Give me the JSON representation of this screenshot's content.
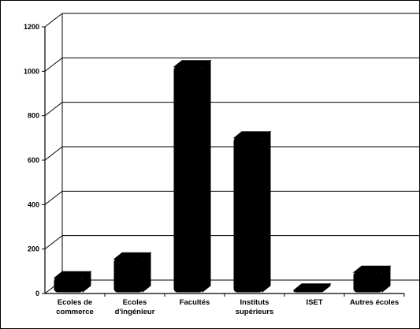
{
  "chart_data": {
    "type": "bar",
    "categories": [
      [
        "Ecoles de",
        "commerce"
      ],
      [
        "Ecoles",
        "d'ingénieur"
      ],
      [
        "Facultés"
      ],
      [
        "Instituts",
        "supérieurs"
      ],
      [
        "ISET"
      ],
      [
        "Autres écoles"
      ]
    ],
    "values": [
      70,
      155,
      1020,
      700,
      15,
      95
    ],
    "yticks": [
      0,
      200,
      400,
      600,
      800,
      1000,
      1200
    ],
    "ylim": [
      0,
      1200
    ],
    "title": "",
    "xlabel": "",
    "ylabel": "",
    "grid": true,
    "bar_color": "#000000",
    "three_d": true
  }
}
